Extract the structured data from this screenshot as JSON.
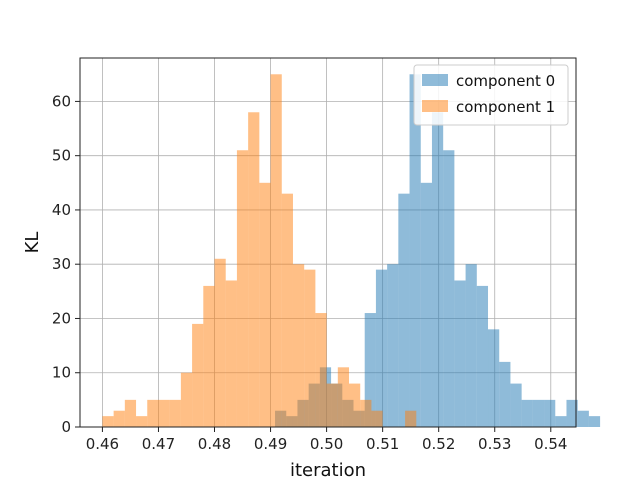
{
  "chart_data": {
    "type": "bar",
    "histogram": true,
    "xlabel": "iteration",
    "ylabel": "KL",
    "xlim": [
      0.456,
      0.5445
    ],
    "ylim": [
      0,
      68
    ],
    "xticks": [
      0.46,
      0.47,
      0.48,
      0.49,
      0.5,
      0.51,
      0.52,
      0.53,
      0.54
    ],
    "xtick_labels": [
      "0.46",
      "0.47",
      "0.48",
      "0.49",
      "0.50",
      "0.51",
      "0.52",
      "0.53",
      "0.54"
    ],
    "yticks": [
      0,
      10,
      20,
      30,
      40,
      50,
      60
    ],
    "ytick_labels": [
      "0",
      "10",
      "20",
      "30",
      "40",
      "50",
      "60"
    ],
    "grid": true,
    "legend": "top-right",
    "series": [
      {
        "name": "component 0",
        "color": "#1f77b4",
        "opacity": 0.5,
        "bin_start": 0.4908,
        "bin_width": 0.002,
        "values": [
          3,
          2,
          5,
          8,
          11,
          8,
          5,
          3,
          21,
          29,
          30,
          43,
          65,
          45,
          58,
          51,
          27,
          30,
          26,
          18,
          12,
          8,
          5,
          5,
          5,
          2,
          5,
          3,
          2
        ]
      },
      {
        "name": "component 1",
        "color": "#ff7f0e",
        "opacity": 0.5,
        "bin_start": 0.46,
        "bin_width": 0.002,
        "values": [
          2,
          3,
          5,
          2,
          5,
          5,
          5,
          10,
          19,
          26,
          31,
          27,
          51,
          58,
          45,
          65,
          43,
          30,
          29,
          21,
          8,
          11,
          8,
          5,
          3,
          0,
          0,
          3
        ]
      }
    ]
  }
}
